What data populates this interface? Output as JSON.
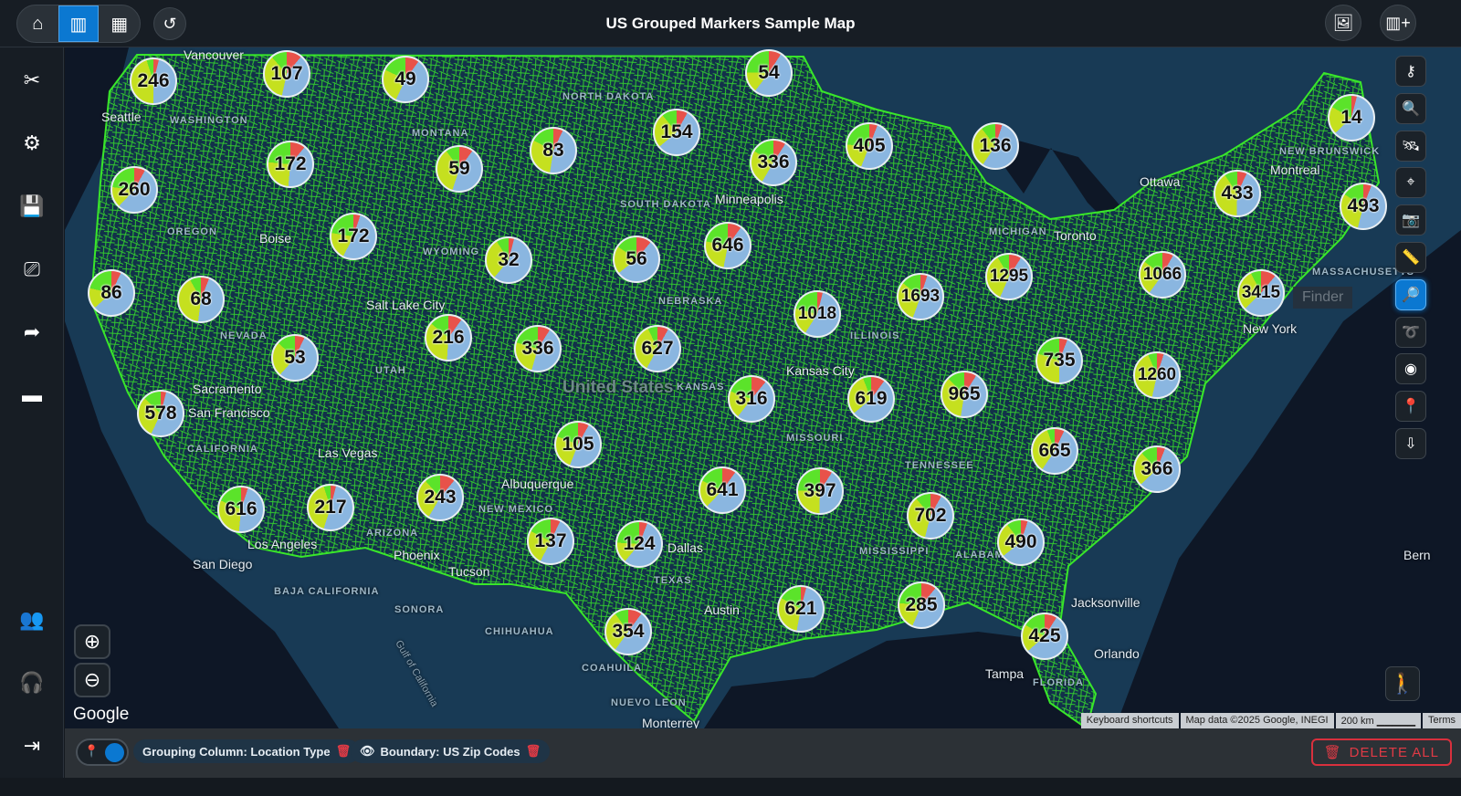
{
  "header": {
    "title": "US Grouped Markers Sample Map",
    "nav": [
      {
        "icon": "home-icon"
      },
      {
        "icon": "map-icon",
        "active": true
      },
      {
        "icon": "table-icon"
      }
    ],
    "reset_icon": "undo-icon",
    "right_buttons": [
      {
        "icon": "image-gallery-icon"
      },
      {
        "icon": "add-map-icon"
      }
    ]
  },
  "sidebar": {
    "items": [
      {
        "icon": "tools-icon"
      },
      {
        "icon": "gear-icon"
      },
      {
        "icon": "save-icon"
      },
      {
        "icon": "presentation-icon"
      },
      {
        "icon": "share-icon"
      },
      {
        "icon": "card-icon"
      }
    ],
    "bottom_items": [
      {
        "icon": "user-settings-icon"
      },
      {
        "icon": "support-icon"
      },
      {
        "icon": "logout-icon"
      }
    ]
  },
  "map": {
    "labels": [
      "Vancouver",
      "Seattle",
      "WASHINGTON",
      "MONTANA",
      "OREGON",
      "Boise",
      "NEVADA",
      "Sacramento",
      "San Francisco",
      "CALIFORNIA",
      "Las Vegas",
      "Los Angeles",
      "San Diego",
      "ARIZONA",
      "Phoenix",
      "Tucson",
      "Albuquerque",
      "NEW MEXICO",
      "TEXAS",
      "Dallas",
      "Austin",
      "Salt Lake City",
      "UTAH",
      "WYOMING",
      "NEBRASKA",
      "KANSAS",
      "Kansas City",
      "SOUTH DAKOTA",
      "NORTH DAKOTA",
      "Minneapolis",
      "MICHIGAN",
      "ILLINOIS",
      "MISSOURI",
      "TENNESSEE",
      "MISSISSIPPI",
      "ALABAMA",
      "FLORIDA",
      "Jacksonville",
      "Orlando",
      "Tampa",
      "Ottawa",
      "Toronto",
      "Montreal",
      "New York",
      "MASSACHUSETTS",
      "NEW BRUNSWICK",
      "BAJA CALIFORNIA",
      "SONORA",
      "CHIHUAHUA",
      "COAHUILA",
      "NUEVO LEON",
      "Monterrey",
      "Gulf of California",
      "Bern",
      "United States"
    ],
    "tooltip": "Finder",
    "colors": {
      "yellow_green": "#c5e01f",
      "blue": "#8ab6e0",
      "green": "#5be32a",
      "red": "#e8524a",
      "boundary": "#39e62a"
    },
    "clusters": [
      246,
      107,
      49,
      54,
      154,
      83,
      405,
      136,
      14,
      172,
      59,
      336,
      260,
      433,
      493,
      172,
      32,
      56,
      646,
      1295,
      1066,
      86,
      68,
      1693,
      1018,
      3415,
      216,
      336,
      627,
      53,
      735,
      1260,
      578,
      316,
      619,
      965,
      105,
      665,
      366,
      616,
      217,
      243,
      641,
      397,
      702,
      137,
      124,
      490,
      621,
      285,
      354,
      425
    ],
    "google_logo": "Google",
    "attribution": {
      "shortcuts": "Keyboard shortcuts",
      "data": "Map data ©2025 Google, INEGI",
      "scale": "200 km",
      "terms": "Terms"
    },
    "zoom_in_icon": "zoom-in-icon",
    "zoom_out_icon": "zoom-out-icon",
    "pegman_icon": "street-view-icon"
  },
  "tools": [
    {
      "icon": "key-icon"
    },
    {
      "icon": "search-icon"
    },
    {
      "icon": "satellite-icon"
    },
    {
      "icon": "locate-icon"
    },
    {
      "icon": "camera-icon"
    },
    {
      "icon": "ruler-icon"
    },
    {
      "icon": "finder-icon",
      "active": true
    },
    {
      "icon": "lasso-icon"
    },
    {
      "icon": "radius-icon"
    },
    {
      "icon": "add-pin-icon"
    },
    {
      "icon": "export-icon"
    }
  ],
  "bottom": {
    "chips": [
      "Grouping Column: Location Type",
      "Boundary: US Zip Codes"
    ],
    "delete_all": "DELETE ALL",
    "toggle_on": true
  }
}
